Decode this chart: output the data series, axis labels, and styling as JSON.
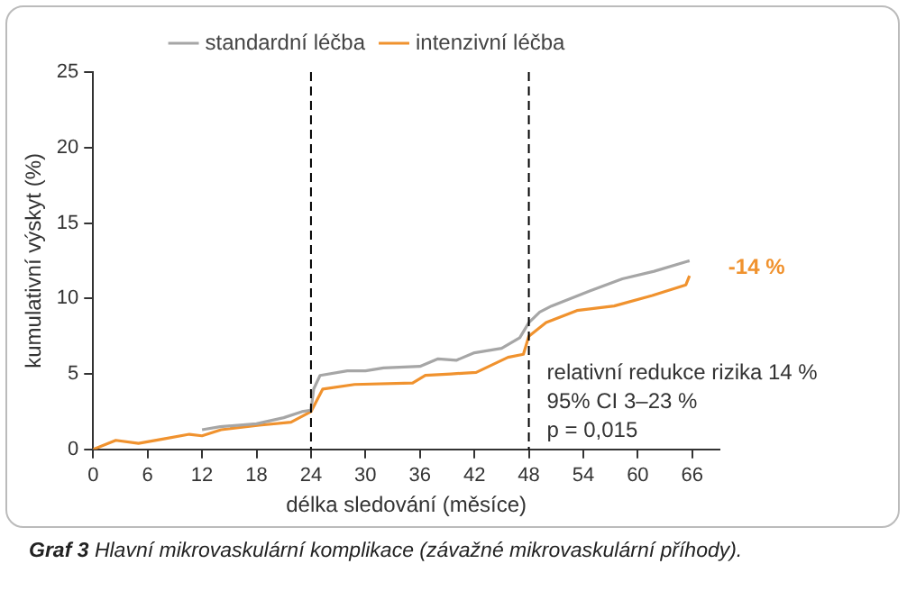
{
  "chart_data": {
    "type": "line",
    "title": "Graf 3  Hlavní mikrovaskulární komplikace (závažné mikrovaskulární příhody).",
    "xlabel": "délka sledování (měsíce)",
    "ylabel": "kumulativní výskyt (%)",
    "xlim": [
      0,
      69
    ],
    "xticks": [
      0,
      6,
      12,
      18,
      24,
      30,
      36,
      42,
      48,
      54,
      60,
      66
    ],
    "ylim": [
      0,
      25
    ],
    "yticks": [
      0,
      5,
      10,
      15,
      20,
      25
    ],
    "grid": false,
    "legend": "top",
    "marker": "none",
    "line_style": "solid",
    "series": [
      {
        "name": "standardní léčba",
        "color": "#a6a6a6",
        "x": [
          12,
          14,
          18,
          21,
          23,
          24,
          24.3,
          25,
          28,
          30,
          32,
          36,
          38,
          40,
          42,
          45,
          47,
          48,
          49.2,
          50.5,
          54.7,
          58.3,
          61.8,
          65.7
        ],
        "values": [
          1.3,
          1.5,
          1.7,
          2.1,
          2.5,
          2.6,
          4.0,
          4.9,
          5.2,
          5.2,
          5.4,
          5.5,
          6.0,
          5.9,
          6.4,
          6.7,
          7.4,
          8.4,
          9.1,
          9.5,
          10.5,
          11.3,
          11.8,
          12.5
        ]
      },
      {
        "name": "intenzivní léčba",
        "color": "#f0922e",
        "x": [
          0,
          2.5,
          5,
          7.8,
          10.6,
          12,
          14.1,
          18.3,
          21.8,
          24,
          25.3,
          28.8,
          35.2,
          36.6,
          39.4,
          42.2,
          45.7,
          47.4,
          48,
          49.9,
          53.3,
          57.4,
          61.6,
          65.3,
          65.7
        ],
        "values": [
          0,
          0.6,
          0.4,
          0.7,
          1.0,
          0.9,
          1.3,
          1.6,
          1.8,
          2.5,
          4.0,
          4.3,
          4.4,
          4.9,
          5.0,
          5.1,
          6.1,
          6.3,
          7.5,
          8.4,
          9.2,
          9.5,
          10.2,
          10.9,
          11.5
        ]
      }
    ],
    "ref_lines": [
      {
        "axis": "x",
        "value": 24,
        "color": "#000000",
        "line_style": "dashed"
      },
      {
        "axis": "x",
        "value": 48,
        "color": "#000000",
        "line_style": "dashed"
      }
    ],
    "annotations": [
      {
        "text": "-14 %",
        "x": 66,
        "y": 12
      },
      "relativní redukce rizika 14 %",
      "95% CI 3–23 %",
      "p = 0,015"
    ]
  }
}
